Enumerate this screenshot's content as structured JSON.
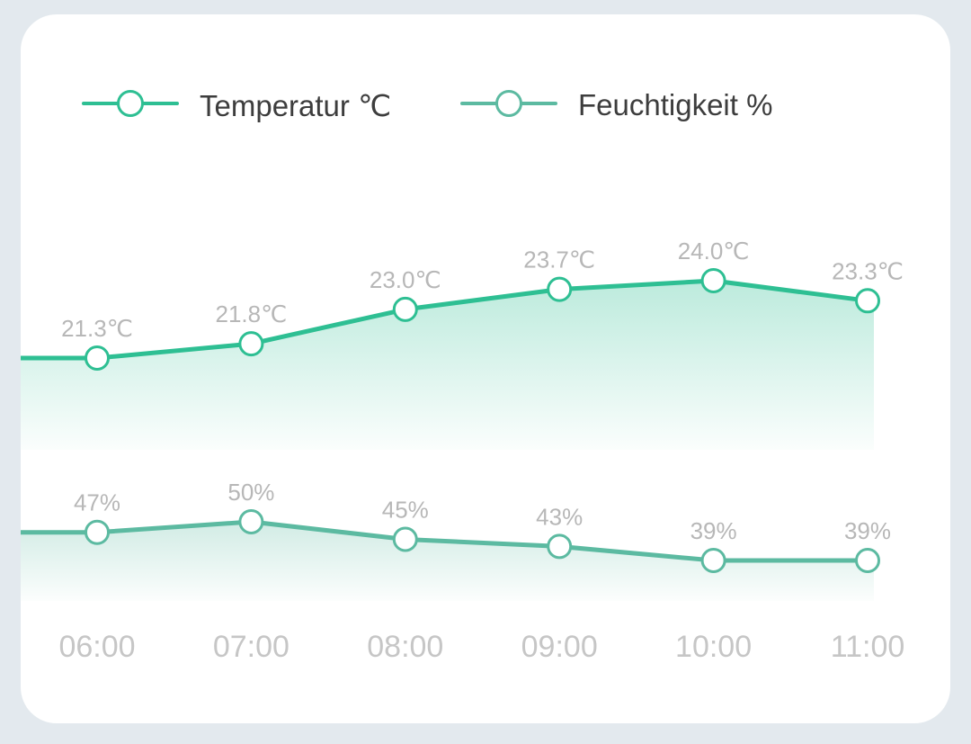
{
  "chart_data": {
    "type": "line",
    "categories": [
      "06:00",
      "07:00",
      "08:00",
      "09:00",
      "10:00",
      "11:00"
    ],
    "series": [
      {
        "name": "Temperatur ℃",
        "values": [
          21.3,
          21.8,
          23.0,
          23.7,
          24.0,
          23.3
        ],
        "labels": [
          "21.3℃",
          "21.8℃",
          "23.0℃",
          "23.7℃",
          "24.0℃",
          "23.3℃"
        ],
        "color": "#2ebf93",
        "area": true
      },
      {
        "name": "Feuchtigkeit %",
        "values": [
          47,
          50,
          45,
          43,
          39,
          39
        ],
        "labels": [
          "47%",
          "50%",
          "45%",
          "43%",
          "39%",
          "39%"
        ],
        "color": "#5cbaa1",
        "area": true
      }
    ],
    "legend": "top-left",
    "grid": false
  }
}
